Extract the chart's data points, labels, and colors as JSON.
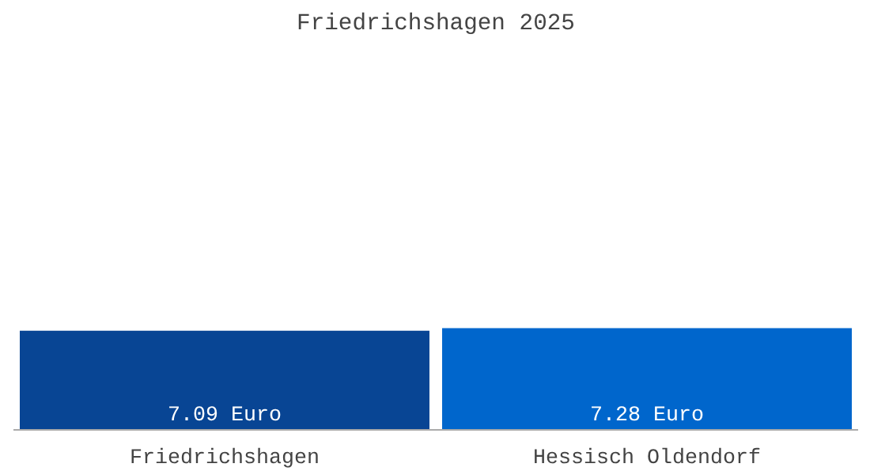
{
  "chart_data": {
    "type": "bar",
    "title": "Friedrichshagen 2025",
    "categories": [
      "Friedrichshagen",
      "Hessisch Oldendorf"
    ],
    "values": [
      7.09,
      7.28
    ],
    "colors": [
      "#084594",
      "#0066cc"
    ],
    "value_labels": [
      "7.09 Euro",
      "7.28 Euro"
    ]
  }
}
